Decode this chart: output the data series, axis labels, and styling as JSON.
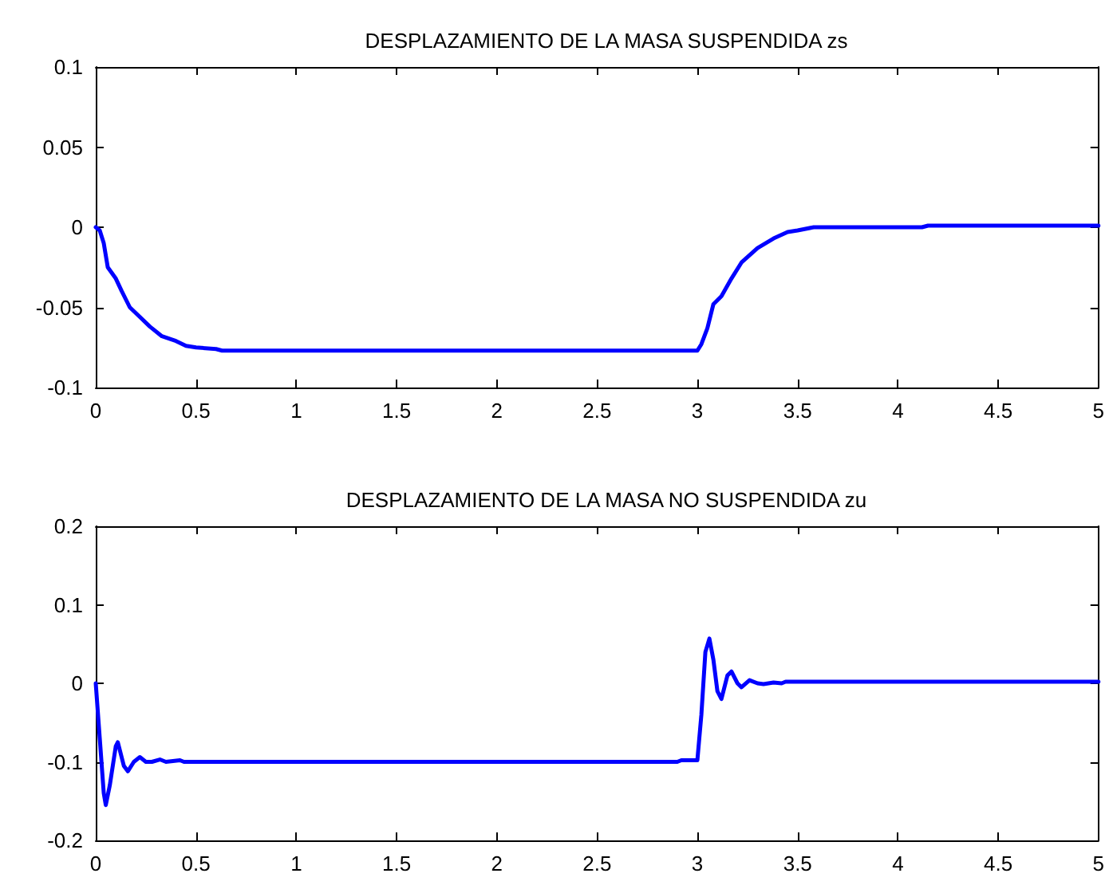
{
  "chart_data": [
    {
      "type": "line",
      "title": "DESPLAZAMIENTO DE LA MASA SUSPENDIDA zs",
      "xlim": [
        0,
        5
      ],
      "xticks": [
        0,
        0.5,
        1,
        1.5,
        2,
        2.5,
        3,
        3.5,
        4,
        4.5,
        5
      ],
      "ylim": [
        -0.1,
        0.1
      ],
      "yticks": [
        -0.1,
        -0.05,
        0,
        0.05,
        0.1
      ],
      "grid": false,
      "marker": "none",
      "line_style": "solid",
      "series": [
        {
          "color": "#0000ff",
          "x": [
            0,
            0.02,
            0.04,
            0.06,
            0.1,
            0.13,
            0.17,
            0.22,
            0.27,
            0.33,
            0.4,
            0.45,
            0.5,
            0.6,
            0.63,
            3.0,
            3.02,
            3.05,
            3.08,
            3.12,
            3.17,
            3.22,
            3.3,
            3.38,
            3.45,
            3.5,
            3.58,
            4.12,
            4.15,
            5
          ],
          "values": [
            0,
            -0.002,
            -0.01,
            -0.025,
            -0.032,
            -0.04,
            -0.05,
            -0.056,
            -0.062,
            -0.068,
            -0.071,
            -0.074,
            -0.075,
            -0.076,
            -0.077,
            -0.077,
            -0.073,
            -0.063,
            -0.048,
            -0.043,
            -0.032,
            -0.022,
            -0.013,
            -0.007,
            -0.003,
            -0.002,
            0,
            0,
            0.001,
            0.001
          ]
        }
      ]
    },
    {
      "type": "line",
      "title": "DESPLAZAMIENTO DE LA MASA NO SUSPENDIDA zu",
      "xlim": [
        0,
        5
      ],
      "xticks": [
        0,
        0.5,
        1,
        1.5,
        2,
        2.5,
        3,
        3.5,
        4,
        4.5,
        5
      ],
      "ylim": [
        -0.2,
        0.2
      ],
      "yticks": [
        -0.2,
        -0.1,
        0,
        0.1,
        0.2
      ],
      "grid": false,
      "marker": "none",
      "line_style": "solid",
      "series": [
        {
          "color": "#0000ff",
          "x": [
            0,
            0.02,
            0.04,
            0.05,
            0.07,
            0.1,
            0.11,
            0.14,
            0.16,
            0.19,
            0.22,
            0.25,
            0.28,
            0.32,
            0.35,
            0.42,
            0.44,
            2.9,
            2.92,
            3.0,
            3.02,
            3.04,
            3.06,
            3.08,
            3.1,
            3.12,
            3.15,
            3.17,
            3.2,
            3.22,
            3.26,
            3.3,
            3.33,
            3.38,
            3.42,
            3.44,
            5
          ],
          "values": [
            0,
            -0.07,
            -0.14,
            -0.155,
            -0.13,
            -0.08,
            -0.075,
            -0.105,
            -0.112,
            -0.1,
            -0.094,
            -0.1,
            -0.1,
            -0.097,
            -0.1,
            -0.098,
            -0.1,
            -0.1,
            -0.098,
            -0.098,
            -0.04,
            0.04,
            0.057,
            0.03,
            -0.01,
            -0.02,
            0.01,
            0.015,
            0,
            -0.005,
            0.004,
            0,
            -0.001,
            0.001,
            0,
            0.002,
            0.002
          ]
        }
      ]
    }
  ]
}
